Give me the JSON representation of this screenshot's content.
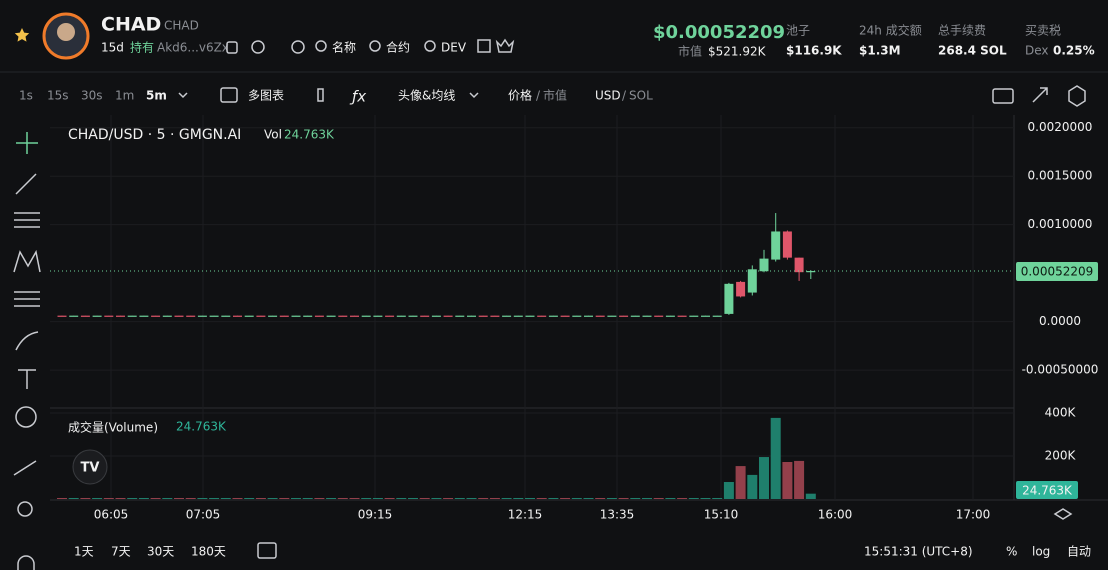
{
  "header": {
    "symbol": "CHAD",
    "symbol_small": "CHAD",
    "age": "15d",
    "holders_label": "持有",
    "address": "Akd6...v6Zx",
    "search_name": "名称",
    "search_contract": "合约",
    "search_dev": "DEV",
    "price": "$0.00052209",
    "mcap_label": "市值",
    "mcap": "$521.92K",
    "pool_label": "池子",
    "pool": "$116.9K",
    "volume_label": "24h 成交额",
    "volume": "$1.3M",
    "fees_label": "总手续费",
    "fees": "268.4 SOL",
    "tax_label": "买卖税",
    "tax_source": "Dex",
    "tax": "0.25%"
  },
  "toolbar": {
    "intervals": [
      "1s",
      "15s",
      "30s",
      "1m",
      "5m"
    ],
    "multi_chart": "多图表",
    "indicators": "头像&均线",
    "price": "价格",
    "slash1": "/",
    "mcap": "市值",
    "usd": "USD",
    "slash2": "/",
    "sol": "SOL"
  },
  "chart_data": {
    "type": "candlestick",
    "legend": "CHAD/USD · 5 · GMGN.AI",
    "vol_label": "Vol",
    "up_color": "#6fd39b",
    "down_color": "#e0566a",
    "ylim": [
      -0.00088,
      0.0021
    ],
    "yticks": [
      {
        "value": 0.002,
        "label": "0.0020000"
      },
      {
        "value": 0.0015,
        "label": "0.0015000"
      },
      {
        "value": 0.001,
        "label": "0.0010000"
      },
      {
        "value": 0,
        "label": "0.0000"
      },
      {
        "value": -0.0005,
        "label": "-0.00050000"
      }
    ],
    "last_price": 0.00052209,
    "xtick_labels": [
      "06:05",
      "07:05",
      "09:15",
      "12:15",
      "13:35",
      "15:10",
      "16:00",
      "17:00"
    ],
    "candles": [
      [
        6.2e-05,
        6.2e-05,
        6e-05,
        6e-05
      ],
      [
        6e-05,
        6.2e-05,
        6e-05,
        6.2e-05
      ],
      [
        6.2e-05,
        6.2e-05,
        6e-05,
        6e-05
      ],
      [
        6e-05,
        6.2e-05,
        6e-05,
        6.2e-05
      ],
      [
        6.2e-05,
        6.2e-05,
        6e-05,
        6e-05
      ],
      [
        6.2e-05,
        6.2e-05,
        6e-05,
        6e-05
      ],
      [
        6e-05,
        6.2e-05,
        6e-05,
        6.2e-05
      ],
      [
        6e-05,
        6.2e-05,
        6e-05,
        6.2e-05
      ],
      [
        6.2e-05,
        6.2e-05,
        6e-05,
        6e-05
      ],
      [
        6e-05,
        6.2e-05,
        6e-05,
        6.2e-05
      ],
      [
        6.2e-05,
        6.2e-05,
        6e-05,
        6e-05
      ],
      [
        6.2e-05,
        6.2e-05,
        6e-05,
        6e-05
      ],
      [
        6e-05,
        6.2e-05,
        6e-05,
        6.2e-05
      ],
      [
        6e-05,
        6.2e-05,
        6e-05,
        6.2e-05
      ],
      [
        6e-05,
        6.2e-05,
        6e-05,
        6.2e-05
      ],
      [
        6.2e-05,
        6.2e-05,
        6e-05,
        6e-05
      ],
      [
        6e-05,
        6.2e-05,
        6e-05,
        6.2e-05
      ],
      [
        6.2e-05,
        6.2e-05,
        6e-05,
        6e-05
      ],
      [
        6e-05,
        6.2e-05,
        6e-05,
        6.2e-05
      ],
      [
        6.2e-05,
        6.2e-05,
        6e-05,
        6e-05
      ],
      [
        6e-05,
        6.2e-05,
        6e-05,
        6.2e-05
      ],
      [
        6e-05,
        6.2e-05,
        6e-05,
        6.2e-05
      ],
      [
        6.2e-05,
        6.2e-05,
        6e-05,
        6e-05
      ],
      [
        6e-05,
        6.2e-05,
        6e-05,
        6.2e-05
      ],
      [
        6.2e-05,
        6.2e-05,
        6e-05,
        6e-05
      ],
      [
        6.2e-05,
        6.2e-05,
        6e-05,
        6e-05
      ],
      [
        6e-05,
        6.2e-05,
        6e-05,
        6.2e-05
      ],
      [
        6e-05,
        6.2e-05,
        6e-05,
        6.2e-05
      ],
      [
        6.2e-05,
        6.2e-05,
        6e-05,
        6e-05
      ],
      [
        6e-05,
        6.2e-05,
        6e-05,
        6.2e-05
      ],
      [
        6e-05,
        6.2e-05,
        6e-05,
        6.2e-05
      ],
      [
        6.2e-05,
        6.2e-05,
        6e-05,
        6e-05
      ],
      [
        6e-05,
        6.2e-05,
        6e-05,
        6.2e-05
      ],
      [
        6.2e-05,
        6.2e-05,
        6e-05,
        6e-05
      ],
      [
        6e-05,
        6.2e-05,
        6e-05,
        6.2e-05
      ],
      [
        6e-05,
        6.2e-05,
        6e-05,
        6.2e-05
      ],
      [
        6.2e-05,
        6.2e-05,
        6e-05,
        6e-05
      ],
      [
        6.2e-05,
        6.2e-05,
        6e-05,
        6e-05
      ],
      [
        6e-05,
        6.2e-05,
        6e-05,
        6.2e-05
      ],
      [
        6e-05,
        6.2e-05,
        6e-05,
        6.2e-05
      ],
      [
        6e-05,
        6.2e-05,
        6e-05,
        6.2e-05
      ],
      [
        6.2e-05,
        6.2e-05,
        6e-05,
        6e-05
      ],
      [
        6e-05,
        6.2e-05,
        6e-05,
        6.2e-05
      ],
      [
        6.2e-05,
        6.2e-05,
        6e-05,
        6e-05
      ],
      [
        6e-05,
        6.2e-05,
        6e-05,
        6.2e-05
      ],
      [
        6e-05,
        6.2e-05,
        6e-05,
        6.2e-05
      ],
      [
        6.2e-05,
        6.2e-05,
        6e-05,
        6e-05
      ],
      [
        6e-05,
        6.2e-05,
        6e-05,
        6.2e-05
      ],
      [
        6.2e-05,
        6.2e-05,
        6e-05,
        6e-05
      ],
      [
        6e-05,
        6.2e-05,
        6e-05,
        6.2e-05
      ],
      [
        6e-05,
        6.2e-05,
        6e-05,
        6.2e-05
      ],
      [
        6.2e-05,
        6.2e-05,
        6e-05,
        6e-05
      ],
      [
        6e-05,
        6.2e-05,
        6e-05,
        6.2e-05
      ],
      [
        6.2e-05,
        6.2e-05,
        6e-05,
        6e-05
      ],
      [
        6e-05,
        6.2e-05,
        6e-05,
        6.2e-05
      ],
      [
        6e-05,
        6.2e-05,
        6e-05,
        6.2e-05
      ],
      [
        6e-05,
        6.2e-05,
        6e-05,
        6.2e-05
      ],
      [
        8e-05,
        0.0004,
        7e-05,
        0.00039
      ],
      [
        0.00041,
        0.00042,
        0.00025,
        0.00026
      ],
      [
        0.0003,
        0.00058,
        0.00027,
        0.00054
      ],
      [
        0.00052,
        0.00074,
        0.00051,
        0.00065
      ],
      [
        0.00064,
        0.00112,
        0.00062,
        0.00093
      ],
      [
        0.00093,
        0.00094,
        0.00064,
        0.00066
      ],
      [
        0.00066,
        0.00066,
        0.00042,
        0.00051
      ],
      [
        0.00052,
        0.00053,
        0.00044,
        0.00052209
      ]
    ],
    "volume": {
      "title": "成交量(Volume)",
      "ylim": [
        0,
        423000
      ],
      "yticks": [
        {
          "value": 400000,
          "label": "400K"
        },
        {
          "value": 200000,
          "label": "200K"
        }
      ],
      "last": {
        "value": 24763,
        "label": "24.763K"
      },
      "up_color": "#1f7f6c",
      "down_color": "#93404b",
      "values": [
        1500,
        1500,
        1500,
        1500,
        1500,
        1500,
        1500,
        1500,
        1500,
        1500,
        1500,
        1500,
        1500,
        1500,
        1500,
        1500,
        1500,
        1500,
        1500,
        1500,
        1500,
        1500,
        1500,
        1500,
        1500,
        1500,
        1500,
        1500,
        1500,
        1500,
        1500,
        1500,
        1500,
        1500,
        1500,
        1500,
        1500,
        1500,
        1500,
        1500,
        1500,
        1500,
        1500,
        1500,
        1500,
        1500,
        1500,
        1500,
        1500,
        1500,
        1500,
        1500,
        1500,
        1500,
        1500,
        1500,
        1500,
        79000,
        153000,
        112000,
        195000,
        377000,
        172000,
        177000,
        24763
      ]
    }
  },
  "footer": {
    "ranges": [
      "1天",
      "7天",
      "30天",
      "180天"
    ],
    "clock": "15:51:31 (UTC+8)",
    "percent": "%",
    "log": "log",
    "auto": "自动"
  }
}
